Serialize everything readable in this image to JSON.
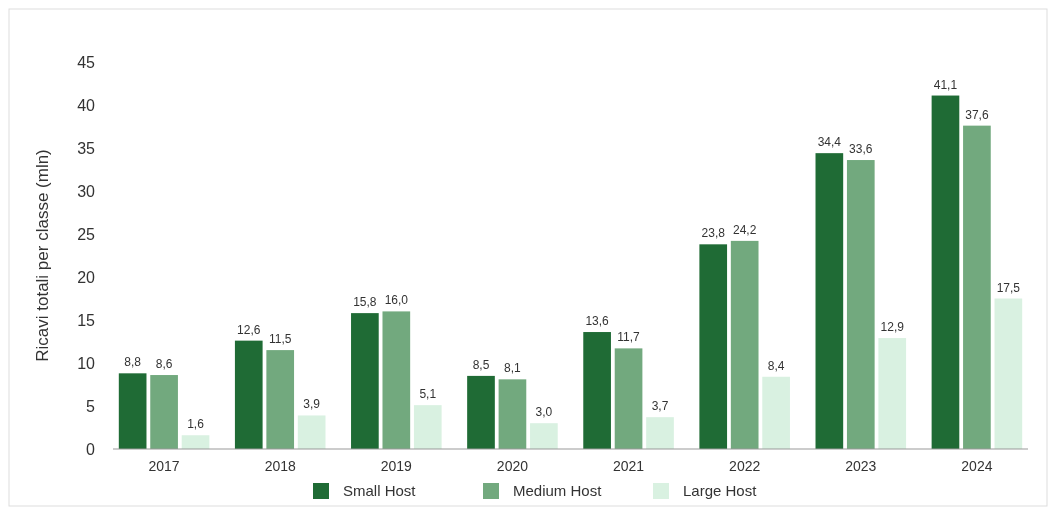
{
  "chart_data": {
    "type": "bar",
    "ylabel": "Ricavi totali per classe (mln)",
    "categories": [
      "2017",
      "2018",
      "2019",
      "2020",
      "2021",
      "2022",
      "2023",
      "2024"
    ],
    "series": [
      {
        "name": "Small Host",
        "color": "#1f6b35",
        "values": [
          8.8,
          12.6,
          15.8,
          8.5,
          13.6,
          23.8,
          34.4,
          41.1
        ],
        "value_labels": [
          "8,8",
          "12,6",
          "15,8",
          "8,5",
          "13,6",
          "23,8",
          "34,4",
          "41,1"
        ]
      },
      {
        "name": "Medium Host",
        "color": "#72a97e",
        "values": [
          8.6,
          11.5,
          16.0,
          8.1,
          11.7,
          24.2,
          33.6,
          37.6
        ],
        "value_labels": [
          "8,6",
          "11,5",
          "16,0",
          "8,1",
          "11,7",
          "24,2",
          "33,6",
          "37,6"
        ]
      },
      {
        "name": "Large Host",
        "color": "#d9f1e1",
        "values": [
          1.6,
          3.9,
          5.1,
          3.0,
          3.7,
          8.4,
          12.9,
          17.5
        ],
        "value_labels": [
          "1,6",
          "3,9",
          "5,1",
          "3,0",
          "3,7",
          "8,4",
          "12,9",
          "17,5"
        ]
      }
    ],
    "ylim": [
      0,
      45
    ],
    "yticks": [
      0,
      5,
      10,
      15,
      20,
      25,
      30,
      35,
      40,
      45
    ],
    "grid": false,
    "legend": "bottom"
  }
}
